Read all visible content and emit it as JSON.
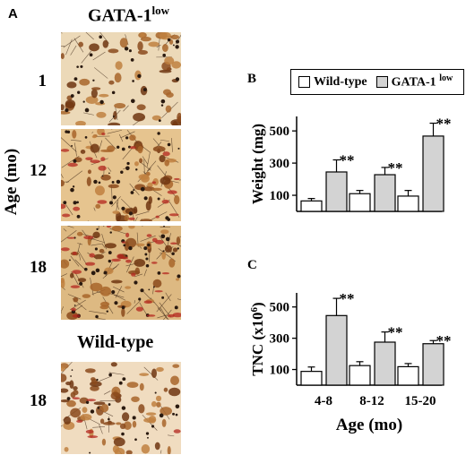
{
  "panel_a": {
    "letter": "A",
    "header_mutant": "GATA-1",
    "header_mutant_sup": "low",
    "header_wildtype": "Wild-type",
    "axis_label": "Age (mo)",
    "rows": [
      "1",
      "12",
      "18",
      "18"
    ]
  },
  "legend": {
    "wildtype": "Wild-type",
    "gata": "GATA-1",
    "gata_sup": "low"
  },
  "colors": {
    "wildtype": "#ffffff",
    "gata": "#d3d3d3",
    "stain_brown": "#7a3b12",
    "stain_red": "#b3261e"
  },
  "chart_data": [
    {
      "panel": "B",
      "type": "bar",
      "ylabel": "Weight  (mg)",
      "yticks": [
        100,
        300,
        500
      ],
      "ylim": [
        0,
        590
      ],
      "categories": [
        "4-8",
        "8-12",
        "15-20"
      ],
      "series": [
        {
          "name": "Wild-type",
          "values": [
            65,
            110,
            95
          ],
          "errors": [
            15,
            20,
            35
          ]
        },
        {
          "name": "GATA-1 low",
          "values": [
            245,
            228,
            468
          ],
          "errors": [
            75,
            45,
            80
          ]
        }
      ],
      "annotations": [
        "**",
        "**",
        "**"
      ]
    },
    {
      "panel": "C",
      "type": "bar",
      "ylabel": "TNC (x10",
      "ylabel_sup": "6",
      "ylabel_end": ")",
      "xlabel": "Age (mo)",
      "yticks": [
        100,
        300,
        500
      ],
      "ylim": [
        0,
        590
      ],
      "categories": [
        "4-8",
        "8-12",
        "15-20"
      ],
      "series": [
        {
          "name": "Wild-type",
          "values": [
            88,
            125,
            118
          ],
          "errors": [
            28,
            25,
            20
          ]
        },
        {
          "name": "GATA-1 low",
          "values": [
            445,
            275,
            265
          ],
          "errors": [
            110,
            65,
            20
          ]
        }
      ],
      "annotations": [
        "**",
        "**",
        "**"
      ]
    }
  ]
}
